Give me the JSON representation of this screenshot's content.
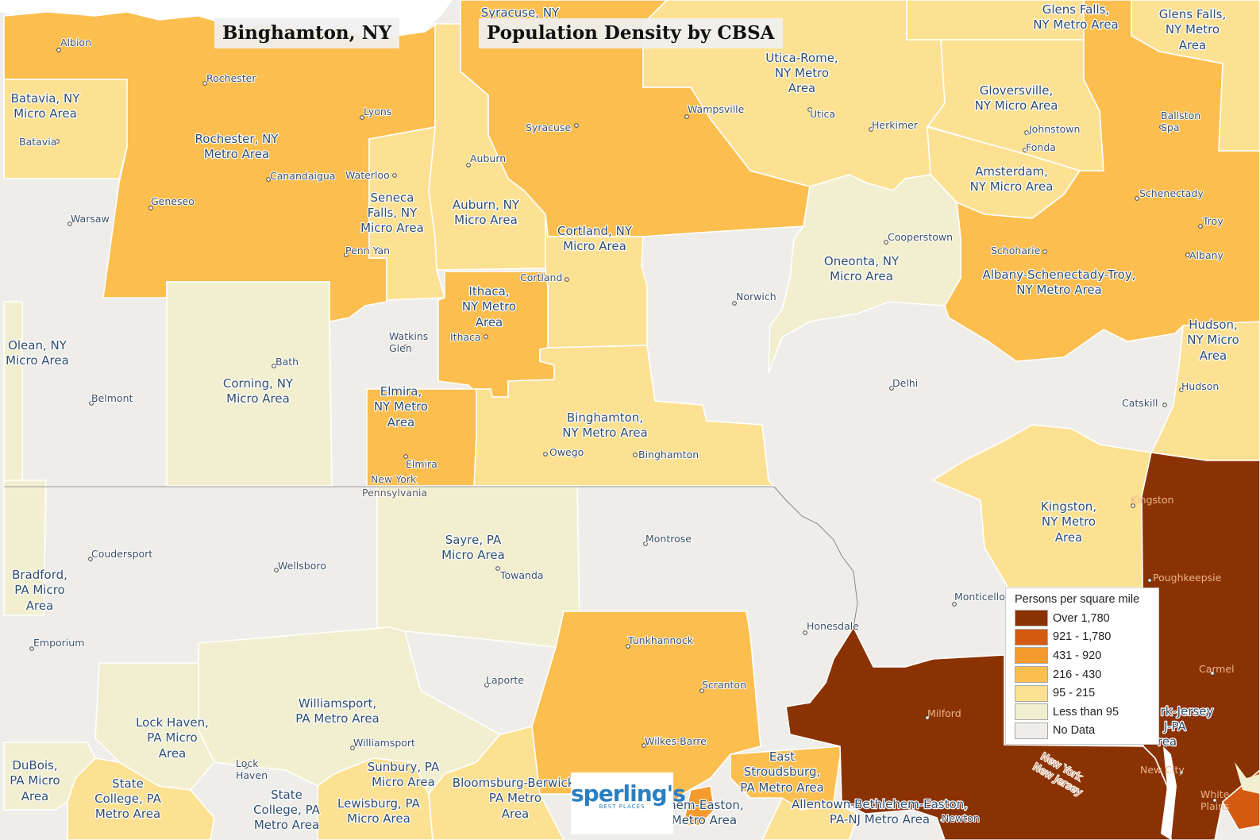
{
  "map": {
    "title": "Binghamton, NY",
    "subtitle": "Population Density by CBSA",
    "colors": {
      "over_1780": "#8b3203",
      "r921_1780": "#d35a10",
      "r431_920": "#f59a2c",
      "r216_430": "#fbbe4f",
      "r95_215": "#fde193",
      "less_95": "#f1efcf",
      "no_data": "#efedea",
      "water": "#ffffff"
    },
    "legend": {
      "title": "Persons per square mile",
      "items": [
        {
          "label": "Over 1,780",
          "color": "#8b3203"
        },
        {
          "label": "921 - 1,780",
          "color": "#d35a10"
        },
        {
          "label": "431 - 920",
          "color": "#f59a2c"
        },
        {
          "label": "216 - 430",
          "color": "#fbbe4f"
        },
        {
          "label": "95 - 215",
          "color": "#fde193"
        },
        {
          "label": "Less than 95",
          "color": "#f1efcf"
        },
        {
          "label": "No Data",
          "color": "#efedea"
        }
      ]
    },
    "areas": {
      "rochester": [
        "Rochester, NY",
        "Metro Area"
      ],
      "batavia": [
        "Batavia, NY",
        "Micro Area"
      ],
      "seneca_falls": [
        "Seneca",
        "Falls, NY",
        "Micro Area"
      ],
      "auburn": [
        "Auburn, NY",
        "Micro Area"
      ],
      "syracuse": [
        "Syracuse, NY"
      ],
      "utica_rome": [
        "Utica-Rome,",
        "NY Metro",
        "Area"
      ],
      "gloversville": [
        "Gloversville,",
        "NY Micro Area"
      ],
      "glens_falls_1": [
        "Glens Falls,",
        "NY Metro Area"
      ],
      "glens_falls_2": [
        "Glens Falls,",
        "NY Metro",
        "Area"
      ],
      "amsterdam": [
        "Amsterdam,",
        "NY Micro Area"
      ],
      "cortland": [
        "Cortland, NY",
        "Micro Area"
      ],
      "ithaca": [
        "Ithaca,",
        "NY Metro",
        "Area"
      ],
      "oneonta": [
        "Oneonta, NY",
        "Micro Area"
      ],
      "albany": [
        "Albany-Schenectady-Troy,",
        "NY Metro Area"
      ],
      "olean": [
        "Olean, NY",
        "Micro Area"
      ],
      "corning": [
        "Corning, NY",
        "Micro Area"
      ],
      "elmira": [
        "Elmira,",
        "NY Metro",
        "Area"
      ],
      "binghamton": [
        "Binghamton,",
        "NY Metro Area"
      ],
      "hudson": [
        "Hudson,",
        "NY Micro",
        "Area"
      ],
      "kingston": [
        "Kingston,",
        "NY Metro",
        "Area"
      ],
      "sayre": [
        "Sayre, PA",
        "Micro Area"
      ],
      "bradford": [
        "Bradford,",
        "PA Micro",
        "Area"
      ],
      "williamsport": [
        "Williamsport,",
        "PA Metro Area"
      ],
      "lock_haven": [
        "Lock Haven,",
        "PA Micro",
        "Area"
      ],
      "dubois": [
        "DuBois,",
        "PA Micro",
        "Area"
      ],
      "state_college_1": [
        "State",
        "College, PA",
        "Metro Area"
      ],
      "state_college_2": [
        "State",
        "College, PA",
        "Metro Area"
      ],
      "sunbury": [
        "Sunbury, PA",
        "Micro Area"
      ],
      "lewisburg": [
        "Lewisburg, PA",
        "Micro Area"
      ],
      "bloomsburg": [
        "Bloomsburg-Berwick,",
        "PA Metro",
        "Area"
      ],
      "east_stroudsburg": [
        "East",
        "Stroudsburg,",
        "PA Metro Area"
      ],
      "allentown_1": [
        "Allentown-Bethlehem-Easton,",
        "PA-NJ Metro Area"
      ],
      "allentown_2": [
        "thlehem-Easton,",
        "PA-NJ Metro Area"
      ],
      "new_york": [
        "rk-Jersey",
        "J-PA",
        "rea"
      ]
    },
    "places": {
      "albion": "Albion",
      "rochester": "Rochester",
      "lyons": "Lyons",
      "batavia": "Batavia",
      "canandaigua": "Canandaigua",
      "waterloo": "Waterloo",
      "geneseo": "Geneseo",
      "warsaw": "Warsaw",
      "penn_yan": "Penn Yan",
      "syracuse": "Syracuse",
      "auburn": "Auburn",
      "wampsville": "Wampsville",
      "utica": "Utica",
      "herkimer": "Herkimer",
      "johnstown": "Johnstown",
      "fonda": "Fonda",
      "ballston_spa": "Ballston Spa",
      "schenectady": "Schenectady",
      "troy": "Troy",
      "albany": "Albany",
      "schoharie": "Schoharie",
      "cooperstown": "Cooperstown",
      "cortland": "Cortland",
      "norwich": "Norwich",
      "ithaca": "Ithaca",
      "watkins_glen": "Watkins Glen",
      "bath": "Bath",
      "belmont": "Belmont",
      "delhi": "Delhi",
      "hudson": "Hudson",
      "catskill": "Catskill",
      "elmira": "Elmira",
      "owego": "Owego",
      "binghamton": "Binghamton",
      "kingston": "Kingston",
      "coudersport": "Coudersport",
      "wellsboro": "Wellsboro",
      "montrose": "Montrose",
      "towanda": "Towanda",
      "poughkeepsie": "Poughkeepsie",
      "monticello": "Monticello",
      "emporium": "Emporium",
      "honesdale": "Honesdale",
      "tunkhannock": "Tunkhannock",
      "carmel": "Carmel",
      "laporte": "Laporte",
      "scranton": "Scranton",
      "milford": "Milford",
      "williamsport": "Williamsport",
      "wilkes_barre": "Wilkes-Barre",
      "lock_haven": "Lock Haven",
      "new_city": "New City",
      "white_plains": "White Plains",
      "newton": "Newton"
    },
    "states": {
      "ny": "New York",
      "pa": "Pennsylvania",
      "ny_diag": "New York",
      "nj_diag": "New Jersey"
    },
    "logo": {
      "name": "sperling's",
      "tagline": "BEST PLACES"
    }
  }
}
